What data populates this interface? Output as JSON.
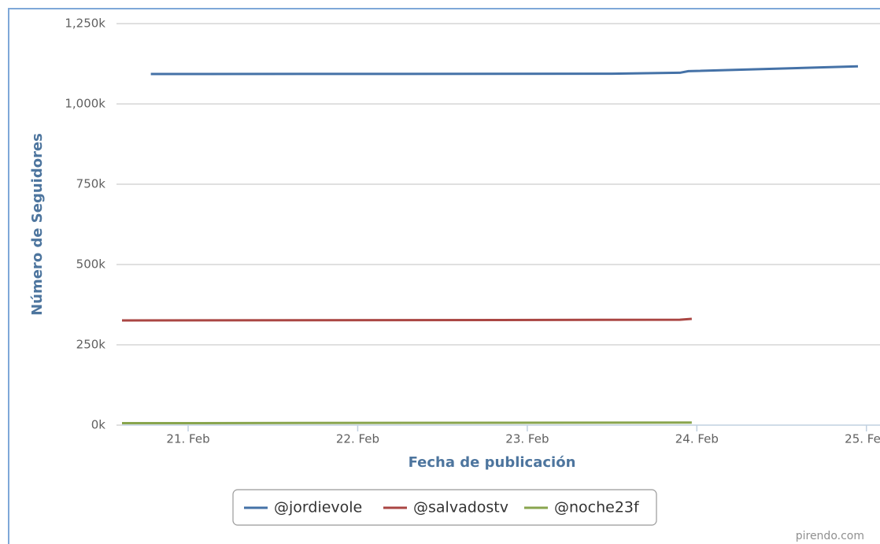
{
  "chart_data": {
    "type": "line",
    "y_label": "Número de Seguidores",
    "x_label": "Fecha de publicación",
    "credit": "pirendo.com",
    "xlim": [
      20.61,
      25.08
    ],
    "xticks": [
      {
        "value": 21,
        "label": "21. Feb"
      },
      {
        "value": 22,
        "label": "22. Feb"
      },
      {
        "value": 23,
        "label": "23. Feb"
      },
      {
        "value": 24,
        "label": "24. Feb"
      },
      {
        "value": 25,
        "label": "25. Feb"
      }
    ],
    "ylim": [
      0,
      1250000
    ],
    "yticks": [
      {
        "value": 0,
        "label": "0k"
      },
      {
        "value": 250000,
        "label": "250k"
      },
      {
        "value": 500000,
        "label": "500k"
      },
      {
        "value": 750000,
        "label": "750k"
      },
      {
        "value": 1000000,
        "label": "1,000k"
      },
      {
        "value": 1250000,
        "label": "1,250k"
      }
    ],
    "grid": true,
    "legend": "bottom",
    "series": [
      {
        "name": "@jordievole",
        "color": "#4572a7",
        "x": [
          20.78,
          23.5,
          23.9,
          23.95,
          24.95
        ],
        "values": [
          1093000,
          1094000,
          1097000,
          1102000,
          1117000
        ]
      },
      {
        "name": "@salvadostv",
        "color": "#aa4643",
        "x": [
          20.61,
          23.9,
          23.97
        ],
        "values": [
          326000,
          328000,
          331000
        ]
      },
      {
        "name": "@noche23f",
        "color": "#89a54e",
        "x": [
          20.61,
          23.97
        ],
        "values": [
          6000,
          8000
        ]
      }
    ]
  }
}
